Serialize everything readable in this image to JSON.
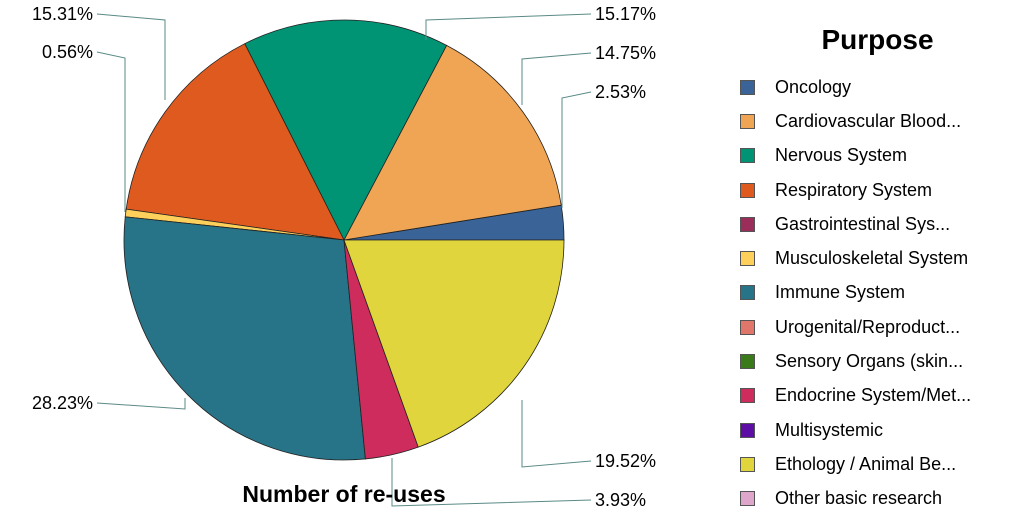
{
  "chart_data": {
    "type": "pie",
    "caption": "Number of re-uses",
    "legend_title": "Purpose",
    "legend_position": "right",
    "slices": [
      {
        "label": "Oncology",
        "value": 2.53,
        "display": "2.53%",
        "color": "#3a6498"
      },
      {
        "label": "Cardiovascular Blood...",
        "value": 14.75,
        "display": "14.75%",
        "color": "#f0a555"
      },
      {
        "label": "Nervous System",
        "value": 15.17,
        "display": "15.17%",
        "color": "#009474"
      },
      {
        "label": "Respiratory System",
        "value": 15.31,
        "display": "15.31%",
        "color": "#de5a1f"
      },
      {
        "label": "Gastrointestinal Sys...",
        "value": 0,
        "display": "",
        "color": "#9b2d5b"
      },
      {
        "label": "Musculoskeletal System",
        "value": 0.56,
        "display": "0.56%",
        "color": "#fdcf5b"
      },
      {
        "label": "Immune System",
        "value": 28.23,
        "display": "28.23%",
        "color": "#277388"
      },
      {
        "label": "Urogenital/Reproduct...",
        "value": 0,
        "display": "",
        "color": "#e0776a"
      },
      {
        "label": "Sensory Organs (skin...",
        "value": 0,
        "display": "",
        "color": "#3b7a1a"
      },
      {
        "label": "Endocrine System/Met...",
        "value": 3.93,
        "display": "3.93%",
        "color": "#cd2c5c"
      },
      {
        "label": "Multisystemic",
        "value": 0,
        "display": "",
        "color": "#5d0fa5"
      },
      {
        "label": "Ethology / Animal Be...",
        "value": 19.52,
        "display": "19.52%",
        "color": "#e1d53d"
      },
      {
        "label": "Other basic research",
        "value": 0,
        "display": "",
        "color": "#dfa6cb"
      }
    ]
  }
}
